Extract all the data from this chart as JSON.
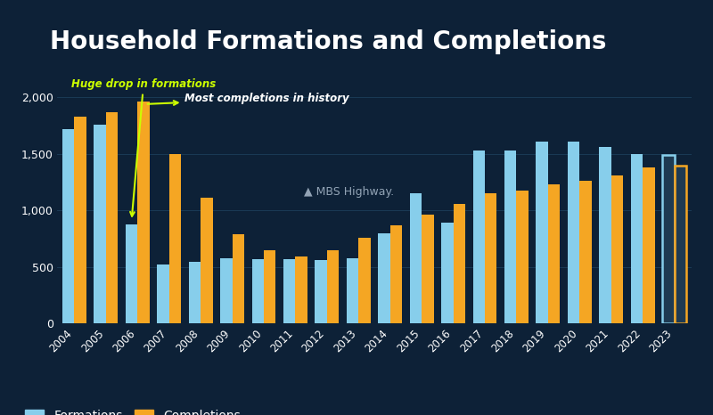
{
  "title": "Household Formations and Completions",
  "background_color": "#0d2137",
  "bar_color_formations": "#87ceeb",
  "bar_color_completions": "#f5a623",
  "bar_color_2023_fill": "#1e3a52",
  "bar_color_2023_formations_edge": "#87ceeb",
  "bar_color_2023_completions_edge": "#f5a623",
  "years": [
    2004,
    2005,
    2006,
    2007,
    2008,
    2009,
    2010,
    2011,
    2012,
    2013,
    2014,
    2015,
    2016,
    2017,
    2018,
    2019,
    2020,
    2021,
    2022,
    2023
  ],
  "formations": [
    1720,
    1760,
    880,
    520,
    550,
    580,
    570,
    570,
    560,
    580,
    800,
    1150,
    890,
    1530,
    1530,
    1610,
    1610,
    1560,
    1500,
    1490
  ],
  "completions": [
    1830,
    1870,
    1960,
    1500,
    1110,
    790,
    650,
    590,
    650,
    760,
    870,
    960,
    1060,
    1150,
    1180,
    1230,
    1260,
    1310,
    1380,
    1400
  ],
  "ylim": [
    0,
    2200
  ],
  "yticks": [
    0,
    500,
    1000,
    1500,
    2000
  ],
  "annotation1_text": "Huge drop in formations",
  "annotation2_text": "Most completions in history",
  "grid_color": "#1a3a55",
  "legend_formations": "Formations",
  "legend_completions": "Completions",
  "title_fontsize": 20,
  "axis_label_color": "#ffffff",
  "annotation1_color": "#ccff00",
  "annotation2_color": "#ffffff",
  "arrow_color": "#ccff00",
  "watermark_text": "▲ MBS Highway.",
  "watermark_color": "#aabbcc"
}
